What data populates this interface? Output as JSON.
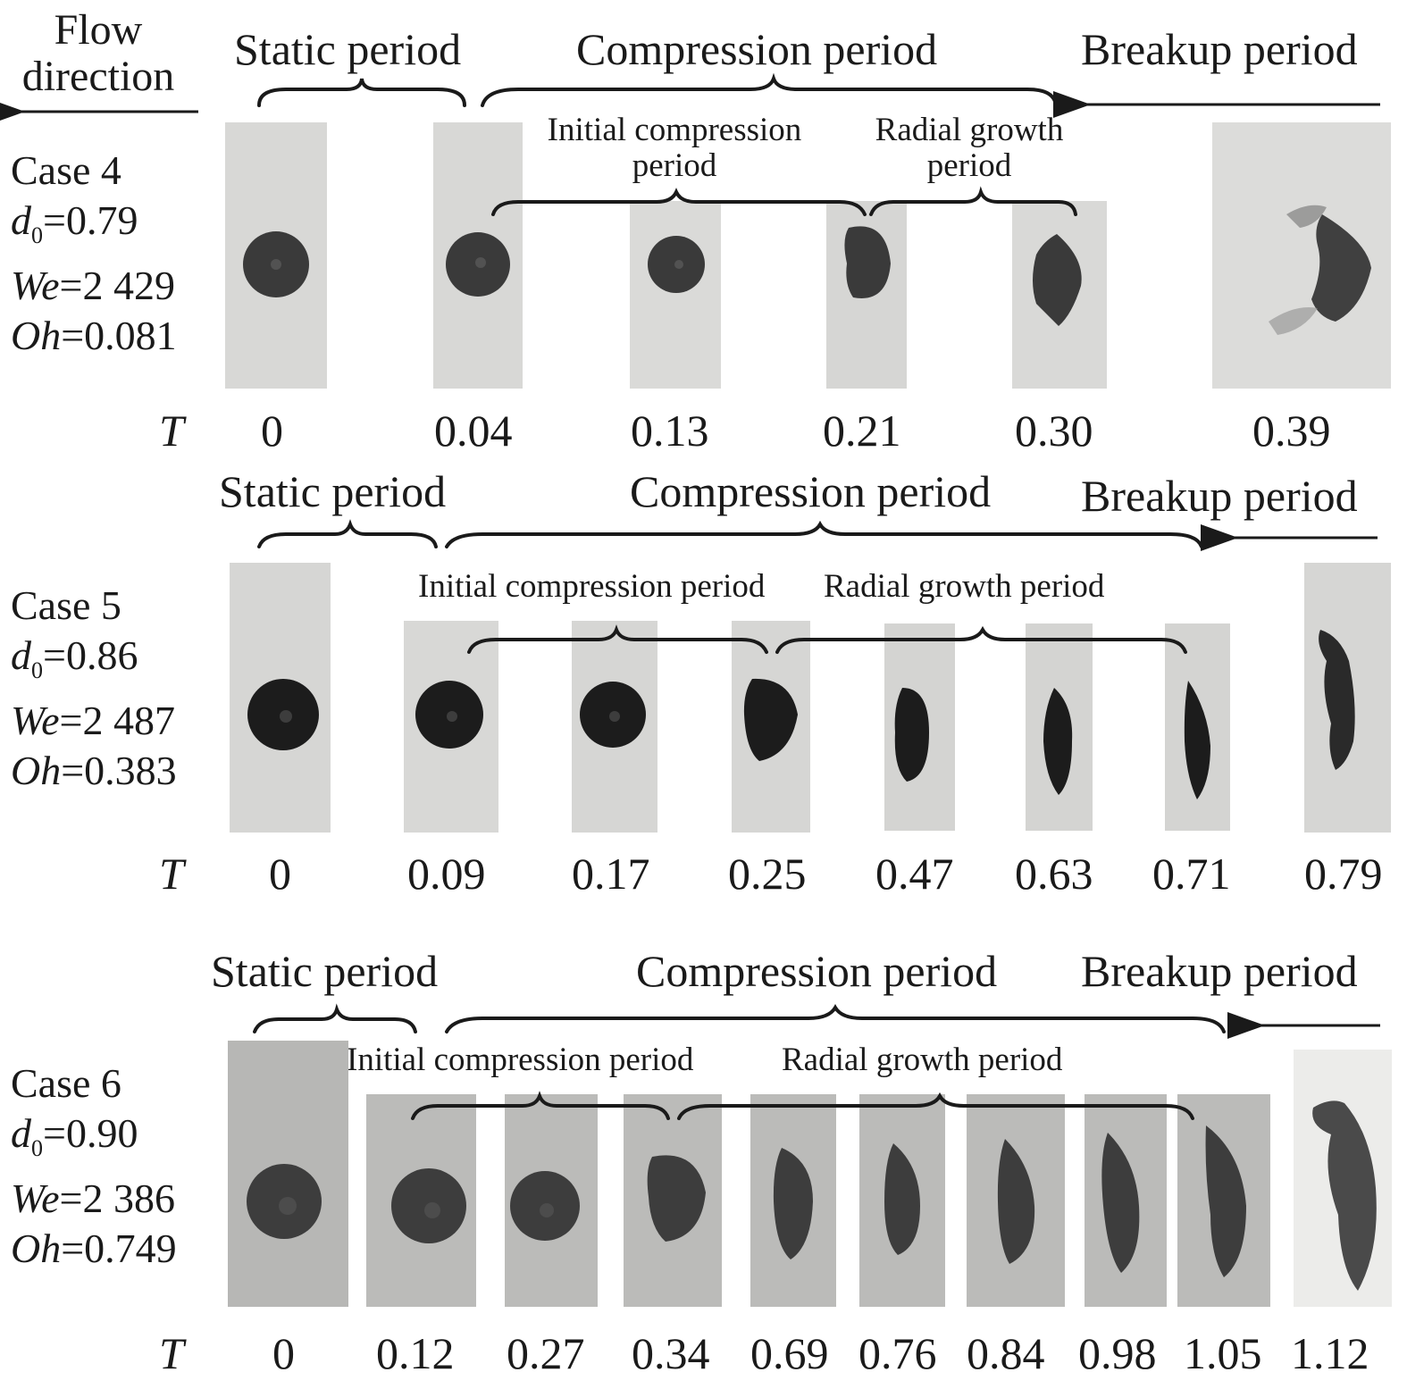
{
  "flow_direction": [
    "Flow",
    "direction"
  ],
  "cases": [
    {
      "name": "Case 4",
      "d0_sym": "d",
      "d0_sub": "0",
      "d0_val": "=0.79",
      "we_sym": "We",
      "we_val": "=2 429",
      "oh_sym": "Oh",
      "oh_val": "=0.081",
      "static_label": "Static period",
      "compression_label": "Compression period",
      "breakup_label": "Breakup period",
      "initial_label": [
        "Initial compression",
        "period"
      ],
      "radial_label": [
        "Radial growth",
        "period"
      ],
      "t_symbol": "T",
      "t_values": [
        "0",
        "0.04",
        "0.13",
        "0.21",
        "0.30",
        "0.39"
      ]
    },
    {
      "name": "Case 5",
      "d0_sym": "d",
      "d0_sub": "0",
      "d0_val": "=0.86",
      "we_sym": "We",
      "we_val": "=2 487",
      "oh_sym": "Oh",
      "oh_val": "=0.383",
      "static_label": "Static period",
      "compression_label": "Compression period",
      "breakup_label": "Breakup period",
      "initial_label": "Initial compression period",
      "radial_label": "Radial growth period",
      "t_symbol": "T",
      "t_values": [
        "0",
        "0.09",
        "0.17",
        "0.25",
        "0.47",
        "0.63",
        "0.71",
        "0.79"
      ]
    },
    {
      "name": "Case 6",
      "d0_sym": "d",
      "d0_sub": "0",
      "d0_val": "=0.90",
      "we_sym": "We",
      "we_val": "=2 386",
      "oh_sym": "Oh",
      "oh_val": "=0.749",
      "static_label": "Static period",
      "compression_label": "Compression period",
      "breakup_label": "Breakup period",
      "initial_label": "Initial compression period",
      "radial_label": "Radial growth period",
      "t_symbol": "T",
      "t_values": [
        "0",
        "0.12",
        "0.27",
        "0.34",
        "0.69",
        "0.76",
        "0.84",
        "0.98",
        "1.05",
        "1.12"
      ]
    }
  ]
}
